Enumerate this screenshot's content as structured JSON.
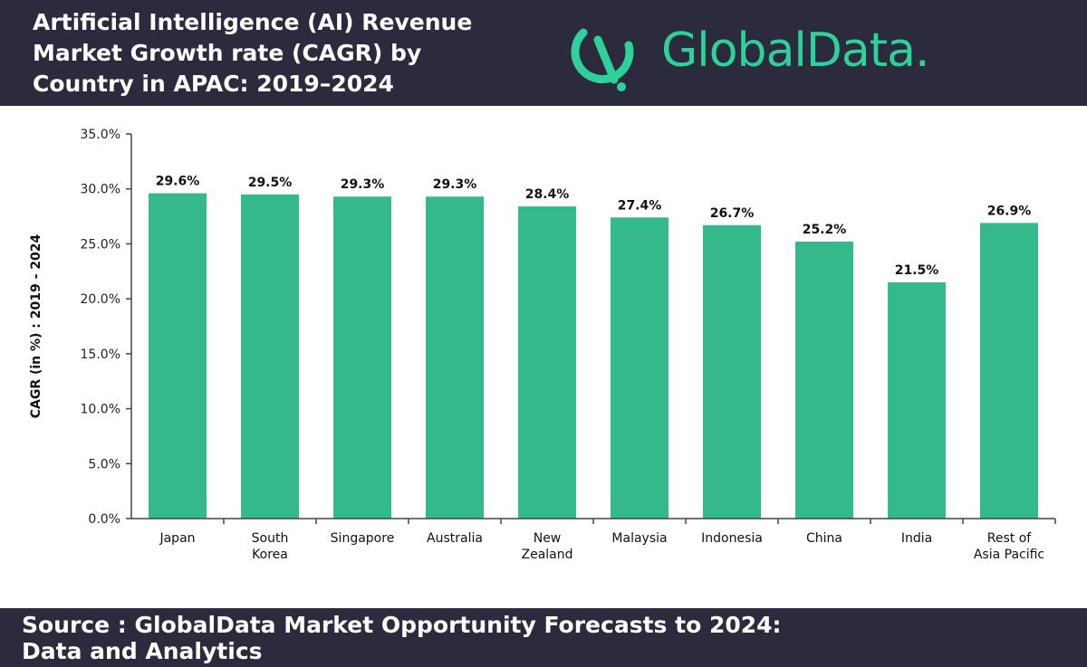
{
  "header": {
    "title": "Artificial Intelligence (AI) Revenue\nMarket Growth rate (CAGR) by\nCountry in APAC: 2019–2024",
    "brand": "GlobalData."
  },
  "footer": {
    "source": "Source : GlobalData Market Opportunity Forecasts to 2024:\nData and Analytics"
  },
  "colors": {
    "bar": "#33b98a",
    "header_bg": "#2b2b3d",
    "brand": "#2ed19a"
  },
  "chart_data": {
    "type": "bar",
    "categories": [
      "Japan",
      "South\nKorea",
      "Singapore",
      "Australia",
      "New\nZealand",
      "Malaysia",
      "Indonesia",
      "China",
      "India",
      "Rest of\nAsia Pacific"
    ],
    "values": [
      29.6,
      29.5,
      29.3,
      29.3,
      28.4,
      27.4,
      26.7,
      25.2,
      21.5,
      26.9
    ],
    "data_labels": [
      "29.6%",
      "29.5%",
      "29.3%",
      "29.3%",
      "28.4%",
      "27.4%",
      "26.7%",
      "25.2%",
      "21.5%",
      "26.9%"
    ],
    "ylabel": "CAGR (in %) : 2019 - 2024",
    "ylim": [
      0,
      35
    ],
    "yticks": [
      0,
      5,
      10,
      15,
      20,
      25,
      30,
      35
    ],
    "ytick_labels": [
      "0.0%",
      "5.0%",
      "10.0%",
      "15.0%",
      "20.0%",
      "25.0%",
      "30.0%",
      "35.0%"
    ],
    "grid": false,
    "legend": "none"
  }
}
